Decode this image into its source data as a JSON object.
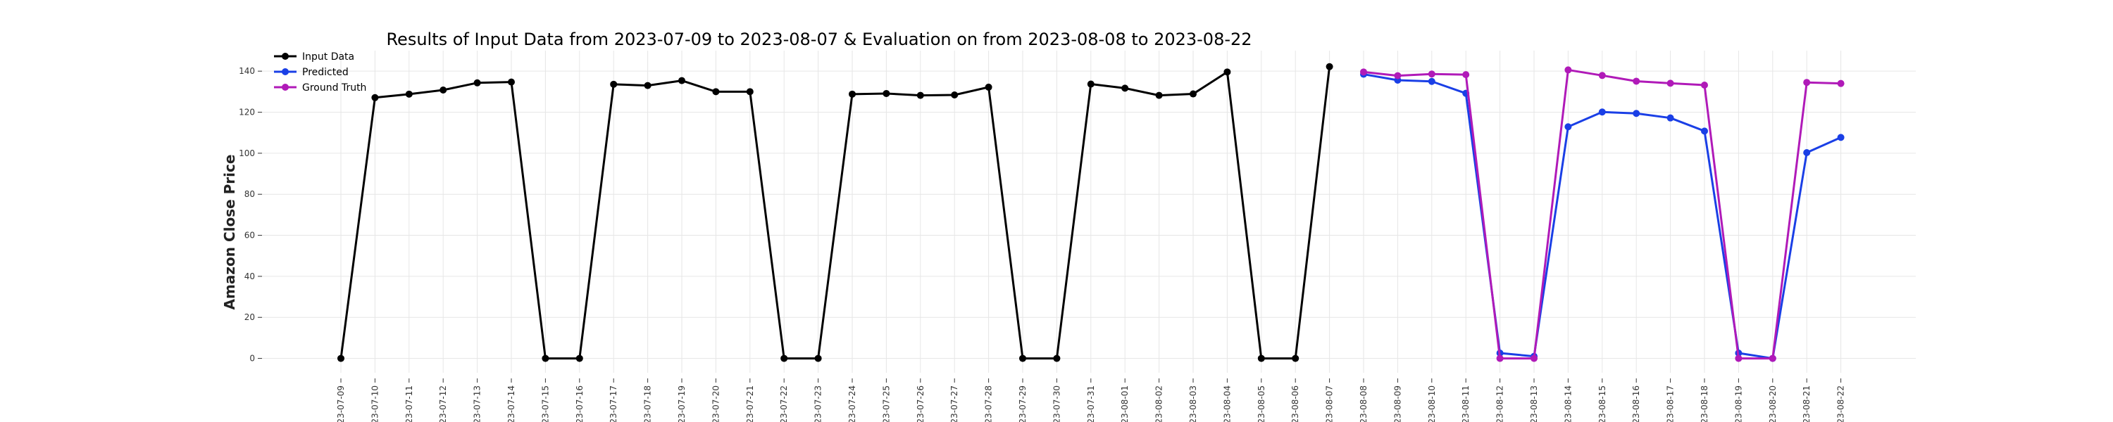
{
  "chart_data": {
    "type": "line",
    "title": "Results of Input Data from 2023-07-09 to 2023-08-07 & Evaluation on from 2023-08-08 to 2023-08-22",
    "xlabel": "",
    "ylabel": "Amazon Close Price",
    "ylim": [
      -7,
      150
    ],
    "yticks": [
      0,
      20,
      40,
      60,
      80,
      100,
      120,
      140
    ],
    "grid": true,
    "legend_position": "top-left",
    "x": [
      "2023-07-09",
      "2023-07-10",
      "2023-07-11",
      "2023-07-12",
      "2023-07-13",
      "2023-07-14",
      "2023-07-15",
      "2023-07-16",
      "2023-07-17",
      "2023-07-18",
      "2023-07-19",
      "2023-07-20",
      "2023-07-21",
      "2023-07-22",
      "2023-07-23",
      "2023-07-24",
      "2023-07-25",
      "2023-07-26",
      "2023-07-27",
      "2023-07-28",
      "2023-07-29",
      "2023-07-30",
      "2023-07-31",
      "2023-08-01",
      "2023-08-02",
      "2023-08-03",
      "2023-08-04",
      "2023-08-05",
      "2023-08-06",
      "2023-08-07",
      "2023-08-08",
      "2023-08-09",
      "2023-08-10",
      "2023-08-11",
      "2023-08-12",
      "2023-08-13",
      "2023-08-14",
      "2023-08-15",
      "2023-08-16",
      "2023-08-17",
      "2023-08-18",
      "2023-08-19",
      "2023-08-20",
      "2023-08-21",
      "2023-08-22"
    ],
    "x_tick_labels": [
      "-23-07-09",
      "-23-07-10",
      "-23-07-11",
      "-23-07-12",
      "-23-07-13",
      "-23-07-14",
      "-23-07-15",
      "-23-07-16",
      "-23-07-17",
      "-23-07-18",
      "-23-07-19",
      "-23-07-20",
      "-23-07-21",
      "-23-07-22",
      "-23-07-23",
      "-23-07-24",
      "-23-07-25",
      "-23-07-26",
      "-23-07-27",
      "-23-07-28",
      "-23-07-29",
      "-23-07-30",
      "-23-07-31",
      "-23-08-01",
      "-23-08-02",
      "-23-08-03",
      "-23-08-04",
      "-23-08-05",
      "-23-08-06",
      "-23-08-07",
      "-23-08-08",
      "-23-08-09",
      "-23-08-10",
      "-23-08-11",
      "-23-08-12",
      "-23-08-13",
      "-23-08-14",
      "-23-08-15",
      "-23-08-16",
      "-23-08-17",
      "-23-08-18",
      "-23-08-19",
      "-23-08-20",
      "-23-08-21",
      "-23-08-22"
    ],
    "series": [
      {
        "name": "Input Data",
        "color": "#000000",
        "x": [
          "2023-07-09",
          "2023-07-10",
          "2023-07-11",
          "2023-07-12",
          "2023-07-13",
          "2023-07-14",
          "2023-07-15",
          "2023-07-16",
          "2023-07-17",
          "2023-07-18",
          "2023-07-19",
          "2023-07-20",
          "2023-07-21",
          "2023-07-22",
          "2023-07-23",
          "2023-07-24",
          "2023-07-25",
          "2023-07-26",
          "2023-07-27",
          "2023-07-28",
          "2023-07-29",
          "2023-07-30",
          "2023-07-31",
          "2023-08-01",
          "2023-08-02",
          "2023-08-03",
          "2023-08-04",
          "2023-08-05",
          "2023-08-06",
          "2023-08-07"
        ],
        "values": [
          0,
          127.1,
          128.8,
          130.8,
          134.3,
          134.7,
          0,
          0,
          133.6,
          133.0,
          135.4,
          130.0,
          130.0,
          0,
          0,
          128.8,
          129.1,
          128.2,
          128.4,
          132.2,
          0,
          0,
          133.7,
          131.7,
          128.2,
          128.9,
          139.6,
          0,
          0,
          142.2
        ]
      },
      {
        "name": "Predicted",
        "color": "#1a3fe6",
        "x": [
          "2023-08-08",
          "2023-08-09",
          "2023-08-10",
          "2023-08-11",
          "2023-08-12",
          "2023-08-13",
          "2023-08-14",
          "2023-08-15",
          "2023-08-16",
          "2023-08-17",
          "2023-08-18",
          "2023-08-19",
          "2023-08-20",
          "2023-08-21",
          "2023-08-22"
        ],
        "values": [
          138.5,
          135.6,
          135.0,
          129.2,
          2.6,
          1.0,
          112.9,
          120.1,
          119.4,
          117.2,
          110.8,
          2.6,
          0,
          100.3,
          107.7
        ]
      },
      {
        "name": "Ground Truth",
        "color": "#b01ab8",
        "x": [
          "2023-08-08",
          "2023-08-09",
          "2023-08-10",
          "2023-08-11",
          "2023-08-12",
          "2023-08-13",
          "2023-08-14",
          "2023-08-15",
          "2023-08-16",
          "2023-08-17",
          "2023-08-18",
          "2023-08-19",
          "2023-08-20",
          "2023-08-21",
          "2023-08-22"
        ],
        "values": [
          139.6,
          137.8,
          138.6,
          138.3,
          0,
          0,
          140.6,
          137.9,
          135.1,
          134.1,
          133.2,
          0,
          0,
          134.5,
          134.0
        ]
      }
    ]
  }
}
